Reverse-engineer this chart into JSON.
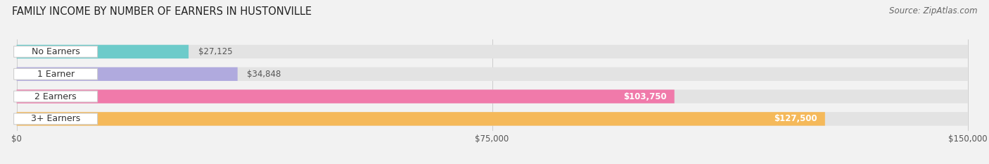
{
  "title": "FAMILY INCOME BY NUMBER OF EARNERS IN HUSTONVILLE",
  "source": "Source: ZipAtlas.com",
  "categories": [
    "No Earners",
    "1 Earner",
    "2 Earners",
    "3+ Earners"
  ],
  "values": [
    27125,
    34848,
    103750,
    127500
  ],
  "labels": [
    "$27,125",
    "$34,848",
    "$103,750",
    "$127,500"
  ],
  "bar_colors": [
    "#6dcbca",
    "#b0aade",
    "#f07aaa",
    "#f5b95a"
  ],
  "xlim_max": 150000,
  "xticks": [
    0,
    75000,
    150000
  ],
  "xtick_labels": [
    "$0",
    "$75,000",
    "$150,000"
  ],
  "background_color": "#f2f2f2",
  "bar_bg_color": "#e3e3e3",
  "label_inside_color": "white",
  "label_outside_color": "#555555",
  "label_threshold": 60000,
  "title_fontsize": 10.5,
  "source_fontsize": 8.5,
  "label_fontsize": 8.5,
  "category_fontsize": 9,
  "bar_height": 0.58,
  "positions": [
    3,
    2,
    1,
    0
  ]
}
